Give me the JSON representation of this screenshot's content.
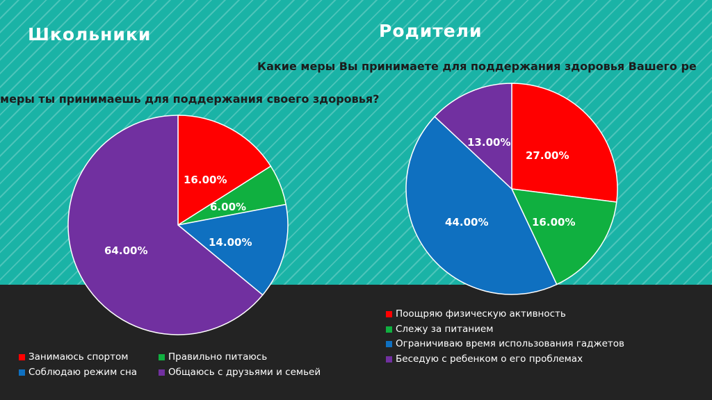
{
  "left_heading": "Школьники",
  "right_heading": "Родители",
  "chart_data": [
    {
      "type": "pie",
      "title": "меры ты принимаешь для поддержания своего здоровья?",
      "slices": [
        {
          "label": "Занимаюсь спортом",
          "value": 16,
          "display": "16.00%",
          "color": "#ff0000"
        },
        {
          "label": "Правильно питаюсь",
          "value": 6,
          "display": "6.00%",
          "color": "#10b040"
        },
        {
          "label": "Соблюдаю режим сна",
          "value": 14,
          "display": "14.00%",
          "color": "#0f70c0"
        },
        {
          "label": "Общаюсь с друзьями и семьей",
          "value": 64,
          "display": "64.00%",
          "color": "#7130a0"
        }
      ],
      "legend_placement": "bottom"
    },
    {
      "type": "pie",
      "title": "Какие меры Вы принимаете для поддержания здоровья Вашего ре",
      "slices": [
        {
          "label": "Поощряю физическую активность",
          "value": 27,
          "display": "27.00%",
          "color": "#ff0000"
        },
        {
          "label": "Слежу за питанием",
          "value": 16,
          "display": "16.00%",
          "color": "#10b040"
        },
        {
          "label": "Ограничиваю время использования гаджетов",
          "value": 44,
          "display": "44.00%",
          "color": "#0f70c0"
        },
        {
          "label": "Беседую с ребенком о его проблемах",
          "value": 13,
          "display": "13.00%",
          "color": "#7130a0"
        }
      ],
      "legend_placement": "bottom"
    }
  ]
}
